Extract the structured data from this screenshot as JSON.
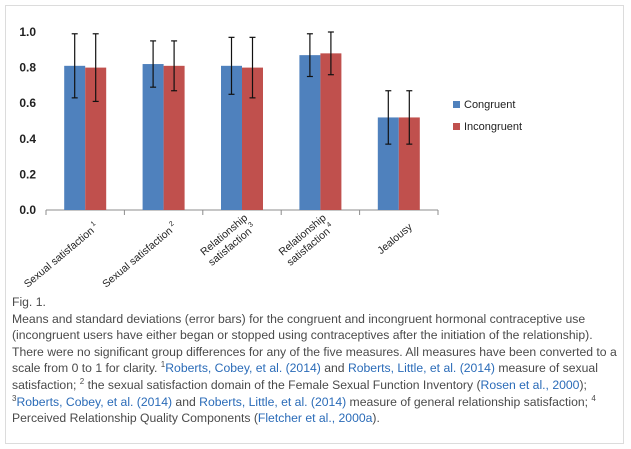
{
  "chart_data": {
    "type": "bar",
    "categories": [
      "Sexual satisfaction",
      "Sexual satisfaction",
      "Relationship satisfaction",
      "Relationship satisfaction",
      "Jealousy"
    ],
    "category_superscripts": [
      "1",
      "2",
      "3",
      "4",
      ""
    ],
    "series": [
      {
        "name": "Congruent",
        "color": "#4f81bd",
        "values": [
          0.81,
          0.82,
          0.81,
          0.87,
          0.52
        ],
        "errors": [
          0.18,
          0.13,
          0.16,
          0.12,
          0.15
        ]
      },
      {
        "name": "Incongruent",
        "color": "#c0504d",
        "values": [
          0.8,
          0.81,
          0.8,
          0.88,
          0.52
        ],
        "errors": [
          0.19,
          0.14,
          0.17,
          0.12,
          0.15
        ]
      }
    ],
    "ylim": [
      0,
      1.0
    ],
    "yticks": [
      "0.0",
      "0.2",
      "0.4",
      "0.6",
      "0.8",
      "1.0"
    ],
    "ytick_values": [
      0,
      0.2,
      0.4,
      0.6,
      0.8,
      1.0
    ],
    "legend_position": "right",
    "grid": false
  },
  "caption": {
    "label": "Fig. 1.",
    "t1": "Means and standard deviations (error bars) for the congruent and incongruent hormonal contraceptive use (incongruent users have either began or stopped using contraceptives after the initiation of the relationship). There were no significant group differences for any of the five measures. All measures have been converted to a scale from 0 to 1 for clarity. ",
    "s1": "1",
    "l1": "Roberts, Cobey, et al. (2014)",
    "t2": " and ",
    "l2": "Roberts, Little, et al. (2014)",
    "t3": " measure of sexual satisfaction; ",
    "s2": "2",
    "t4": " the sexual satisfaction domain of the Female Sexual Function Inventory (",
    "l3": "Rosen et al., 2000",
    "t5": "); ",
    "s3": "3",
    "l4": "Roberts, Cobey, et al. (2014)",
    "t6": " and ",
    "l5": "Roberts, Little, et al. (2014)",
    "t7": " measure of general relationship satisfaction; ",
    "s4": "4",
    "t8": " Perceived Relationship Quality Components (",
    "l6": "Fletcher et al., 2000a",
    "t9": ")."
  }
}
